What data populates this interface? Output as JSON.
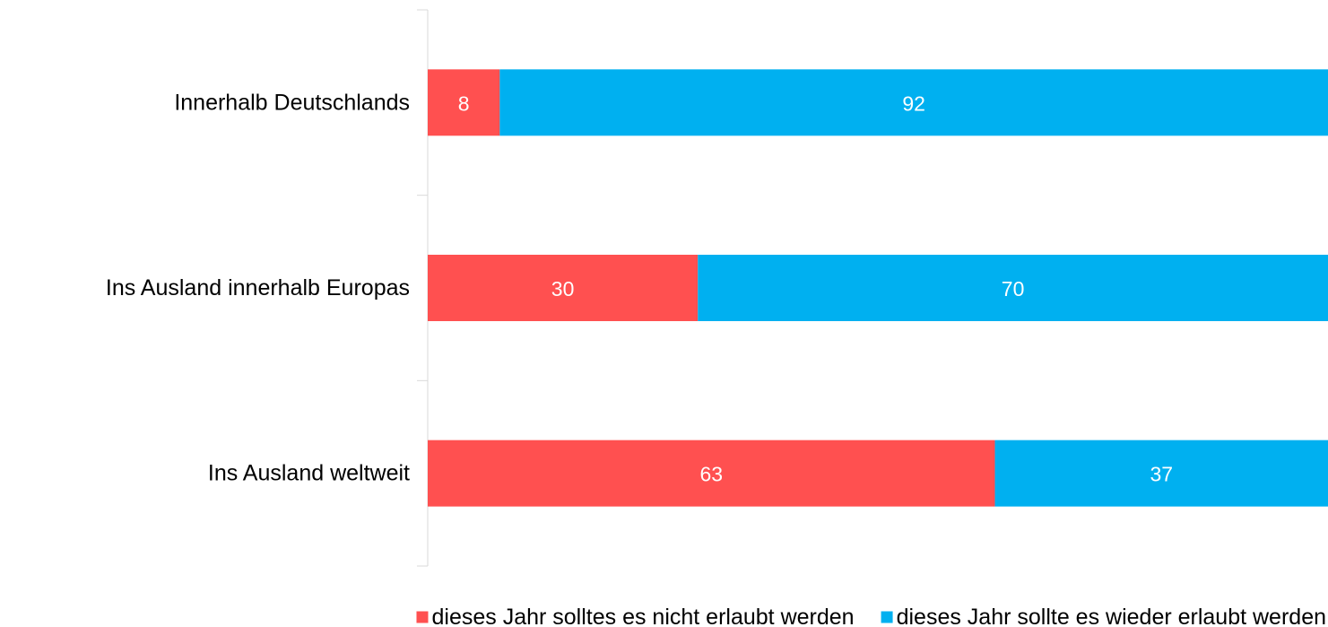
{
  "chart_data": {
    "type": "bar",
    "orientation": "horizontal",
    "stacked": true,
    "categories": [
      "Innerhalb Deutschlands",
      "Ins Ausland innerhalb Europas",
      "Ins Ausland weltweit"
    ],
    "series": [
      {
        "name": "dieses Jahr solltes es nicht erlaubt werden",
        "color": "#ff5050",
        "values": [
          8,
          30,
          63
        ]
      },
      {
        "name": "dieses Jahr sollte es wieder erlaubt werden",
        "color": "#00b0f0",
        "values": [
          92,
          70,
          37
        ]
      }
    ],
    "xlim": [
      0,
      100
    ],
    "grid": false,
    "legend_position": "bottom",
    "data_labels": true
  }
}
